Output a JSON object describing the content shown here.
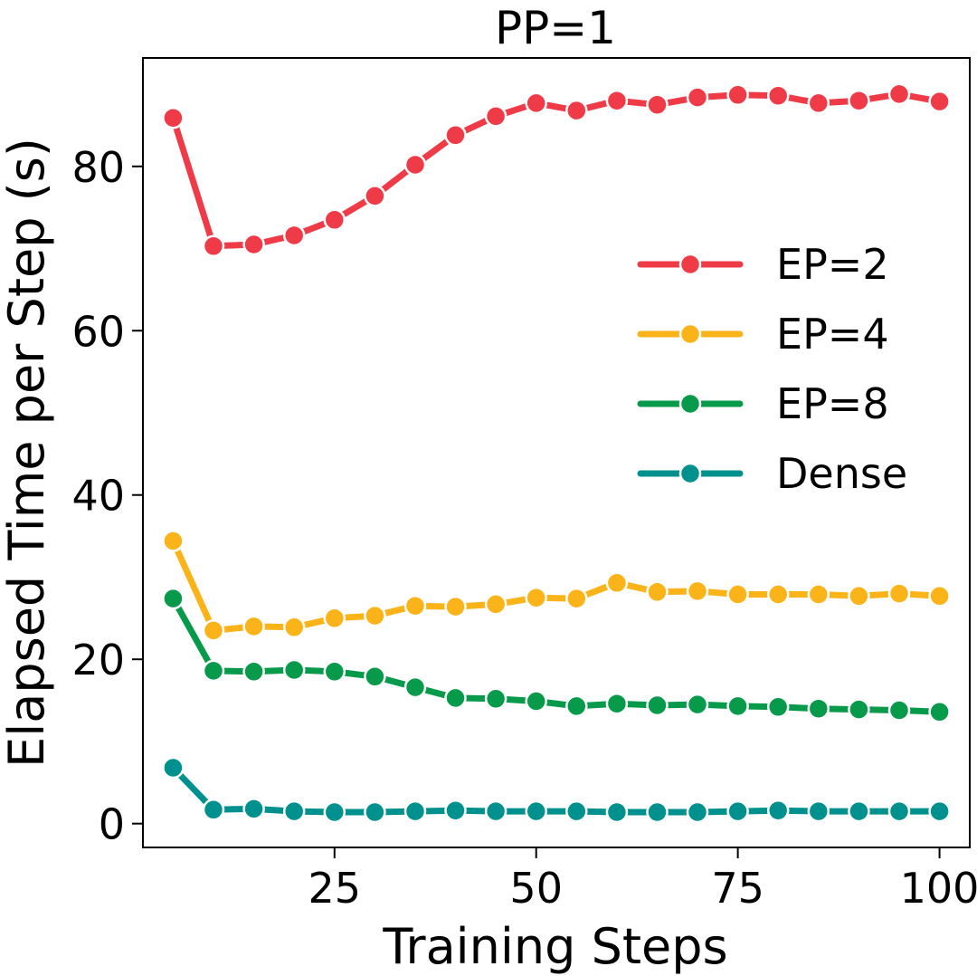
{
  "chart_data": {
    "type": "line",
    "title": "PP=1",
    "xlabel": "Training Steps",
    "ylabel": "Elapsed Time per Step (s)",
    "xlim": [
      1.25,
      103.75
    ],
    "ylim": [
      -2.9,
      93.2
    ],
    "x_ticks": [
      25,
      50,
      75,
      100
    ],
    "y_ticks": [
      0,
      20,
      40,
      60,
      80
    ],
    "grid": false,
    "legend_position": "center-right",
    "x": [
      5,
      10,
      15,
      20,
      25,
      30,
      35,
      40,
      45,
      50,
      55,
      60,
      65,
      70,
      75,
      80,
      85,
      90,
      95,
      100
    ],
    "series": [
      {
        "name": "EP=2",
        "color": "#ef3b47",
        "values": [
          85.9,
          70.3,
          70.5,
          71.6,
          73.5,
          76.4,
          80.2,
          83.8,
          86.1,
          87.7,
          86.8,
          88.0,
          87.5,
          88.4,
          88.7,
          88.6,
          87.7,
          88.0,
          88.8,
          87.9
        ]
      },
      {
        "name": "EP=4",
        "color": "#fbb31a",
        "values": [
          34.4,
          23.5,
          24.0,
          23.9,
          25.0,
          25.3,
          26.5,
          26.4,
          26.7,
          27.5,
          27.4,
          29.3,
          28.2,
          28.3,
          27.9,
          27.9,
          27.9,
          27.7,
          28.0,
          27.7
        ]
      },
      {
        "name": "EP=8",
        "color": "#079a4a",
        "values": [
          27.4,
          18.6,
          18.5,
          18.7,
          18.5,
          17.9,
          16.6,
          15.3,
          15.2,
          14.9,
          14.3,
          14.6,
          14.4,
          14.5,
          14.3,
          14.2,
          14.0,
          13.9,
          13.8,
          13.6
        ]
      },
      {
        "name": "Dense",
        "color": "#00918f",
        "values": [
          6.8,
          1.7,
          1.8,
          1.5,
          1.4,
          1.4,
          1.5,
          1.6,
          1.5,
          1.5,
          1.5,
          1.4,
          1.4,
          1.4,
          1.5,
          1.6,
          1.5,
          1.5,
          1.5,
          1.5
        ]
      }
    ]
  }
}
